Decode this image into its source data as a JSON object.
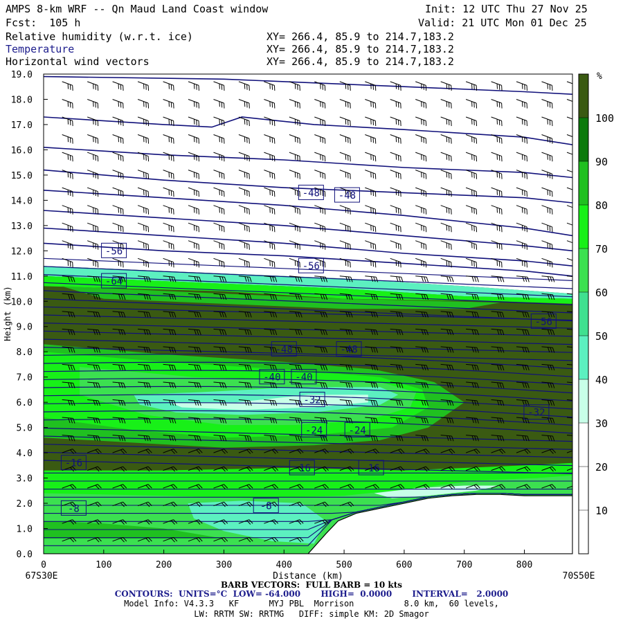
{
  "header": {
    "title": "AMPS 8-km WRF -- Qn Maud Land Coast window",
    "init": "Init: 12 UTC Thu 27 Nov 25",
    "fcst": "Fcst:  105 h",
    "valid": "Valid: 21 UTC Mon 01 Dec 25",
    "fields": [
      {
        "name": "Relative humidity (w.r.t. ice)",
        "xy": "XY= 266.4, 85.9 to 214.7,183.2"
      },
      {
        "name": "Temperature",
        "xy": "XY= 266.4, 85.9 to 214.7,183.2"
      },
      {
        "name": "Horizontal wind vectors",
        "xy": "XY= 266.4, 85.9 to 214.7,183.2"
      }
    ]
  },
  "footer": {
    "barb": "BARB VECTORS:  FULL BARB = 10 kts",
    "contours": "CONTOURS:  UNITS=°C  LOW= -64.000       HIGH=  0.0000       INTERVAL=   2.0000",
    "model1": "Model Info: V4.3.3   KF      MYJ PBL  Morrison          8.0 km,  60 levels,",
    "model2": "LW: RRTM SW: RRTMG   DIFF: simple KM: 2D Smagor"
  },
  "colors": {
    "temp_contour": "#10107a",
    "rh_bins": [
      "#ffffff",
      "#ffffff",
      "#ffffff",
      "#c8ffe8",
      "#5cf0c0",
      "#40e090",
      "#3ce050",
      "#18f018",
      "#20c020",
      "#0c7a0c",
      "#3a5a12"
    ]
  },
  "chart_data": {
    "type": "cross-section",
    "ylabel": "Height (km)",
    "xlabel": "Distance (km)",
    "xlim": [
      0,
      880
    ],
    "ylim": [
      0,
      19
    ],
    "xticks": [
      0,
      100,
      200,
      300,
      400,
      500,
      600,
      700,
      800
    ],
    "yticks": [
      "0.0",
      "1.0",
      "2.0",
      "3.0",
      "4.0",
      "5.0",
      "6.0",
      "7.0",
      "8.0",
      "9.0",
      "10.0",
      "11.0",
      "12.0",
      "13.0",
      "14.0",
      "15.0",
      "16.0",
      "17.0",
      "18.0",
      "19.0"
    ],
    "left_endpoint": "67S30E",
    "right_endpoint": "70S50E",
    "colorbar": {
      "unit": "%",
      "ticks": [
        10,
        20,
        30,
        40,
        50,
        60,
        70,
        80,
        90,
        100
      ],
      "bins": [
        0,
        10,
        20,
        30,
        40,
        50,
        60,
        70,
        80,
        90,
        100,
        110
      ]
    },
    "terrain": [
      [
        0,
        0
      ],
      [
        440,
        0
      ],
      [
        470,
        0.8
      ],
      [
        490,
        1.3
      ],
      [
        520,
        1.6
      ],
      [
        560,
        1.8
      ],
      [
        600,
        2.0
      ],
      [
        640,
        2.2
      ],
      [
        680,
        2.3
      ],
      [
        720,
        2.35
      ],
      [
        760,
        2.35
      ],
      [
        800,
        2.3
      ],
      [
        840,
        2.3
      ],
      [
        880,
        2.3
      ]
    ],
    "temperature_labels": [
      {
        "text": "-48",
        "x": 445,
        "y": 14.3
      },
      {
        "text": "-48",
        "x": 505,
        "y": 14.2
      },
      {
        "text": "-56",
        "x": 117,
        "y": 12.0
      },
      {
        "text": "-56",
        "x": 445,
        "y": 11.4
      },
      {
        "text": "-64",
        "x": 117,
        "y": 10.8
      },
      {
        "text": "-56",
        "x": 832,
        "y": 9.2
      },
      {
        "text": "-48",
        "x": 400,
        "y": 8.1
      },
      {
        "text": "-48",
        "x": 508,
        "y": 8.1
      },
      {
        "text": "-40",
        "x": 380,
        "y": 7.0
      },
      {
        "text": "-40",
        "x": 433,
        "y": 7.0
      },
      {
        "text": "-32",
        "x": 447,
        "y": 6.1
      },
      {
        "text": "-32",
        "x": 820,
        "y": 5.6
      },
      {
        "text": "-24",
        "x": 450,
        "y": 4.9
      },
      {
        "text": "-24",
        "x": 522,
        "y": 4.9
      },
      {
        "text": "-16",
        "x": 50,
        "y": 3.6
      },
      {
        "text": "-16",
        "x": 430,
        "y": 3.4
      },
      {
        "text": "-16",
        "x": 545,
        "y": 3.4
      },
      {
        "text": "-8",
        "x": 50,
        "y": 1.8
      },
      {
        "text": "-8",
        "x": 370,
        "y": 1.9
      }
    ]
  }
}
